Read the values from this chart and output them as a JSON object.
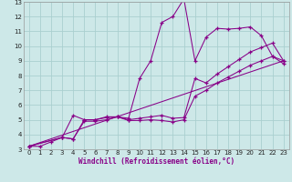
{
  "xlabel": "Windchill (Refroidissement éolien,°C)",
  "background_color": "#cde8e8",
  "grid_color": "#aacfcf",
  "line_color": "#880088",
  "xlim": [
    -0.5,
    23.5
  ],
  "ylim": [
    3,
    13
  ],
  "xticks": [
    0,
    1,
    2,
    3,
    4,
    5,
    6,
    7,
    8,
    9,
    10,
    11,
    12,
    13,
    14,
    15,
    16,
    17,
    18,
    19,
    20,
    21,
    22,
    23
  ],
  "yticks": [
    3,
    4,
    5,
    6,
    7,
    8,
    9,
    10,
    11,
    12,
    13
  ],
  "series1_x": [
    0,
    1,
    2,
    3,
    4,
    5,
    6,
    7,
    8,
    9,
    10,
    11,
    12,
    13,
    14,
    15,
    16,
    17,
    18,
    19,
    20,
    21,
    22,
    23
  ],
  "series1_y": [
    3.2,
    3.2,
    3.5,
    3.8,
    3.7,
    5.0,
    5.0,
    5.2,
    5.2,
    5.1,
    7.8,
    9.0,
    11.6,
    12.0,
    13.2,
    9.0,
    10.6,
    11.2,
    11.15,
    11.2,
    11.3,
    10.7,
    9.3,
    9.0
  ],
  "series2_x": [
    0,
    3,
    4,
    5,
    6,
    7,
    8,
    9,
    10,
    11,
    12,
    13,
    14,
    15,
    16,
    17,
    18,
    19,
    20,
    21,
    22,
    23
  ],
  "series2_y": [
    3.2,
    3.8,
    5.3,
    5.0,
    5.0,
    5.15,
    5.2,
    5.0,
    5.1,
    5.2,
    5.3,
    5.1,
    5.15,
    7.8,
    7.5,
    8.1,
    8.6,
    9.1,
    9.6,
    9.9,
    10.2,
    9.0
  ],
  "series3_x": [
    0,
    23
  ],
  "series3_y": [
    3.2,
    9.0
  ],
  "series4_x": [
    0,
    3,
    4,
    5,
    6,
    7,
    8,
    9,
    10,
    11,
    12,
    13,
    14,
    15,
    16,
    17,
    18,
    19,
    20,
    21,
    22,
    23
  ],
  "series4_y": [
    3.2,
    3.8,
    3.7,
    4.9,
    4.9,
    5.0,
    5.2,
    4.95,
    4.95,
    5.0,
    4.95,
    4.85,
    5.0,
    6.6,
    7.0,
    7.5,
    7.9,
    8.3,
    8.7,
    9.0,
    9.3,
    8.8
  ]
}
